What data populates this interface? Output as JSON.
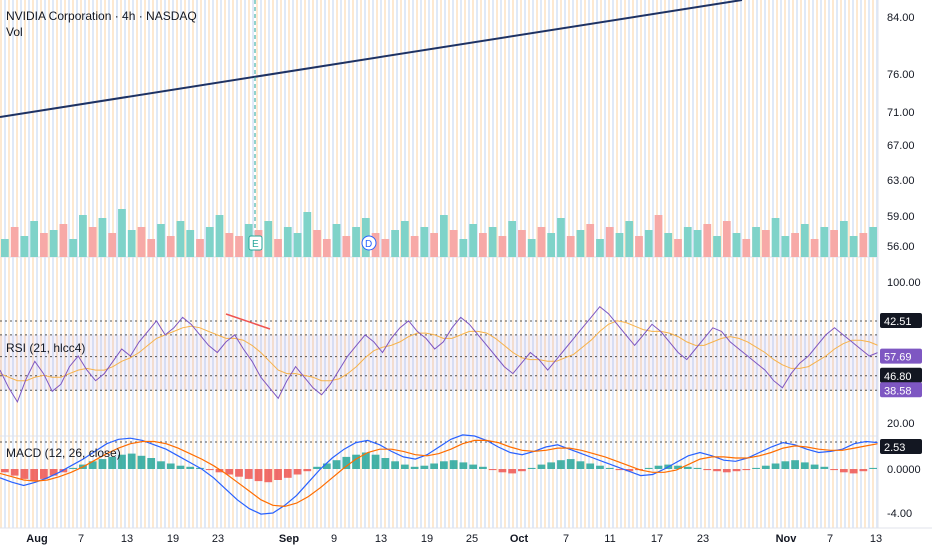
{
  "legend": {
    "symbol_line": "NVIDIA Corporation · 4h · NASDAQ",
    "volume_label": "Vol",
    "rsi_label": "RSI (21, hlcc4)",
    "macd_label": "MACD (12, 26, close)"
  },
  "events": [
    {
      "name": "earnings-marker",
      "text": "E",
      "date": "Aug 28"
    },
    {
      "name": "dividend-marker",
      "text": "D",
      "date": "Sep 11"
    }
  ],
  "colors": {
    "up": "#26a69a",
    "down": "#ef5350",
    "trendline": "#1e3263",
    "rsi": "#7e57c2",
    "rsi_ma": "#f6b24b",
    "macd": "#2962ff",
    "signal": "#ff6d00",
    "band_orange": "#fde7cc",
    "band_blue": "#dbe7f7"
  },
  "chart_data": [
    {
      "type": "line",
      "title": "NVIDIA Corporation · 4h · NASDAQ",
      "y_axis_ticks": [
        "84.00",
        "76.00",
        "71.00",
        "67.00",
        "63.00",
        "59.00",
        "56.00"
      ],
      "x_axis_ticks": [
        "Aug",
        "7",
        "13",
        "19",
        "23",
        "Sep",
        "9",
        "13",
        "19",
        "25",
        "Oct",
        "7",
        "11",
        "17",
        "23",
        "Nov",
        "7",
        "13"
      ],
      "annotations": [
        {
          "kind": "trendline",
          "from_y": 70.5,
          "to_y": 86.5
        }
      ],
      "volume": {
        "label": "Vol",
        "relative_values": [
          0.3,
          0.5,
          0.35,
          0.6,
          0.4,
          0.45,
          0.55,
          0.3,
          0.7,
          0.5,
          0.65,
          0.4,
          0.8,
          0.45,
          0.5,
          0.3,
          0.55,
          0.35,
          0.6,
          0.45,
          0.3,
          0.5,
          0.7,
          0.4,
          0.35,
          0.55,
          0.45,
          0.6,
          0.3,
          0.5,
          0.4,
          0.75,
          0.45,
          0.3,
          0.55,
          0.35,
          0.5,
          0.65,
          0.4,
          0.3,
          0.45,
          0.6,
          0.35,
          0.5,
          0.4,
          0.7,
          0.45,
          0.3,
          0.55,
          0.4,
          0.5,
          0.35,
          0.6,
          0.45,
          0.3,
          0.5,
          0.4,
          0.65,
          0.35,
          0.45,
          0.55,
          0.3,
          0.5,
          0.4,
          0.6,
          0.35,
          0.45,
          0.7,
          0.4,
          0.3,
          0.5,
          0.45,
          0.55,
          0.35,
          0.6,
          0.4,
          0.3,
          0.5,
          0.45,
          0.65,
          0.35,
          0.4,
          0.55,
          0.3,
          0.5,
          0.45,
          0.6,
          0.35,
          0.4,
          0.5
        ],
        "colors": [
          "up",
          "down",
          "up",
          "up",
          "down",
          "up",
          "down",
          "up",
          "up",
          "down",
          "up",
          "down",
          "up",
          "up",
          "down",
          "down",
          "up",
          "down",
          "up",
          "up",
          "down",
          "up",
          "up",
          "down",
          "down",
          "up",
          "down",
          "up",
          "down",
          "up",
          "up",
          "up",
          "down",
          "down",
          "up",
          "down",
          "up",
          "up",
          "down",
          "down",
          "up",
          "up",
          "down",
          "up",
          "down",
          "up",
          "down",
          "up",
          "up",
          "down",
          "up",
          "down",
          "up",
          "down",
          "up",
          "down",
          "up",
          "up",
          "down",
          "up",
          "down",
          "up",
          "down",
          "up",
          "up",
          "down",
          "up",
          "down",
          "up",
          "down",
          "up",
          "up",
          "down",
          "up",
          "down",
          "up",
          "down",
          "up",
          "down",
          "up",
          "up",
          "down",
          "up",
          "down",
          "up",
          "down",
          "up",
          "up",
          "down",
          "up"
        ]
      }
    },
    {
      "type": "line",
      "series": [
        {
          "name": "RSI (21, hlcc4)",
          "values": [
            50,
            40,
            32,
            45,
            55,
            48,
            38,
            42,
            52,
            58,
            50,
            44,
            48,
            55,
            62,
            58,
            66,
            72,
            78,
            70,
            74,
            80,
            76,
            70,
            64,
            60,
            66,
            70,
            62,
            55,
            46,
            40,
            34,
            44,
            52,
            46,
            40,
            36,
            42,
            50,
            58,
            64,
            70,
            66,
            60,
            68,
            74,
            78,
            72,
            68,
            62,
            66,
            74,
            80,
            76,
            70,
            64,
            58,
            52,
            48,
            54,
            60,
            56,
            50,
            56,
            62,
            68,
            74,
            80,
            86,
            82,
            76,
            70,
            64,
            70,
            76,
            72,
            66,
            60,
            56,
            62,
            68,
            74,
            72,
            66,
            62,
            58,
            54,
            50,
            44,
            40,
            48,
            54,
            58,
            64,
            70,
            74,
            70,
            66,
            62,
            58,
            60
          ]
        },
        {
          "name": "RSI MA",
          "values": [
            48,
            46,
            44,
            44,
            46,
            47,
            46,
            46,
            48,
            50,
            51,
            50,
            50,
            52,
            55,
            57,
            60,
            64,
            68,
            70,
            72,
            74,
            75,
            74,
            72,
            70,
            68,
            68,
            67,
            64,
            60,
            55,
            50,
            48,
            48,
            47,
            46,
            44,
            44,
            45,
            48,
            52,
            57,
            61,
            63,
            64,
            66,
            69,
            71,
            71,
            70,
            68,
            68,
            70,
            72,
            72,
            71,
            68,
            64,
            60,
            57,
            56,
            56,
            55,
            55,
            57,
            59,
            63,
            67,
            72,
            76,
            78,
            77,
            75,
            73,
            72,
            72,
            71,
            69,
            66,
            64,
            64,
            66,
            68,
            69,
            68,
            66,
            63,
            60,
            56,
            53,
            51,
            51,
            52,
            55,
            58,
            62,
            65,
            67,
            67,
            66,
            64
          ]
        },
        {
          "name": "Level 70",
          "values": [
            70
          ]
        },
        {
          "name": "Level 57.69",
          "values": [
            57.69
          ]
        },
        {
          "name": "Level 46.80",
          "values": [
            46.8
          ]
        },
        {
          "name": "Level 38.58",
          "values": [
            38.58
          ]
        }
      ],
      "title": "RSI (21, hlcc4)",
      "y_axis_ticks": [
        "100.00",
        "20.00"
      ],
      "ylim": [
        20,
        100
      ],
      "value_labels": [
        "42.51",
        "57.69",
        "46.80",
        "38.58"
      ]
    },
    {
      "type": "bar",
      "title": "MACD (12, 26, close)",
      "y_axis_ticks": [
        "2.53",
        "0.0000",
        "-4.00"
      ],
      "ylim": [
        -4.5,
        3
      ],
      "series": [
        {
          "name": "Histogram",
          "values": [
            -0.3,
            -0.6,
            -0.9,
            -1.1,
            -0.9,
            -0.6,
            -0.3,
            0.1,
            0.4,
            0.7,
            0.9,
            1.1,
            1.3,
            1.4,
            1.2,
            1.0,
            0.7,
            0.5,
            0.3,
            0.2,
            0.1,
            -0.1,
            -0.3,
            -0.5,
            -0.7,
            -0.9,
            -1.1,
            -1.2,
            -1.0,
            -0.8,
            -0.5,
            -0.2,
            0.2,
            0.5,
            0.8,
            1.1,
            1.3,
            1.5,
            1.3,
            1.0,
            0.7,
            0.4,
            0.2,
            0.3,
            0.5,
            0.7,
            0.8,
            0.6,
            0.4,
            0.2,
            -0.1,
            -0.3,
            -0.4,
            -0.2,
            0.1,
            0.4,
            0.6,
            0.8,
            0.9,
            0.7,
            0.5,
            0.3,
            0.1,
            -0.1,
            -0.2,
            -0.1,
            0.1,
            0.3,
            0.4,
            0.3,
            0.2,
            0.1,
            -0.1,
            -0.2,
            -0.3,
            -0.2,
            -0.1,
            0.1,
            0.3,
            0.5,
            0.7,
            0.8,
            0.6,
            0.4,
            0.2,
            -0.1,
            -0.3,
            -0.4,
            -0.2,
            0.1
          ]
        },
        {
          "name": "MACD",
          "values": [
            -0.8,
            -1.2,
            -1.5,
            -1.2,
            -0.8,
            -0.3,
            0.3,
            0.9,
            1.6,
            2.3,
            2.7,
            2.8,
            2.6,
            2.2,
            1.8,
            1.2,
            0.6,
            0.0,
            -0.8,
            -1.8,
            -2.8,
            -3.6,
            -4.1,
            -4.0,
            -3.3,
            -2.4,
            -1.2,
            0.0,
            1.0,
            1.8,
            2.4,
            2.6,
            2.2,
            1.6,
            1.1,
            0.9,
            1.3,
            2.0,
            2.7,
            3.1,
            3.0,
            2.6,
            2.0,
            1.5,
            1.3,
            1.6,
            2.0,
            2.2,
            1.8,
            1.4,
            1.0,
            0.6,
            0.2,
            -0.2,
            -0.6,
            -0.5,
            0.0,
            0.6,
            1.2,
            1.5,
            1.2,
            0.8,
            0.7,
            1.0,
            1.5,
            2.0,
            2.4,
            2.2,
            1.8,
            1.5,
            1.6,
            1.8,
            2.3,
            2.5,
            2.4
          ]
        },
        {
          "name": "Signal",
          "values": [
            -0.4,
            -0.7,
            -1.0,
            -1.1,
            -1.0,
            -0.7,
            -0.3,
            0.2,
            0.8,
            1.4,
            1.9,
            2.3,
            2.5,
            2.5,
            2.3,
            1.9,
            1.4,
            0.9,
            0.3,
            -0.4,
            -1.2,
            -2.0,
            -2.8,
            -3.3,
            -3.4,
            -3.1,
            -2.5,
            -1.7,
            -0.8,
            0.1,
            0.9,
            1.5,
            1.8,
            1.8,
            1.6,
            1.3,
            1.2,
            1.4,
            1.8,
            2.3,
            2.6,
            2.6,
            2.4,
            2.0,
            1.7,
            1.6,
            1.7,
            1.9,
            1.9,
            1.7,
            1.4,
            1.1,
            0.7,
            0.3,
            -0.1,
            -0.3,
            -0.3,
            -0.1,
            0.4,
            0.9,
            1.1,
            1.1,
            1.0,
            1.0,
            1.2,
            1.5,
            1.9,
            2.1,
            2.0,
            1.8,
            1.7,
            1.7,
            1.9,
            2.1,
            2.3
          ]
        }
      ]
    }
  ]
}
